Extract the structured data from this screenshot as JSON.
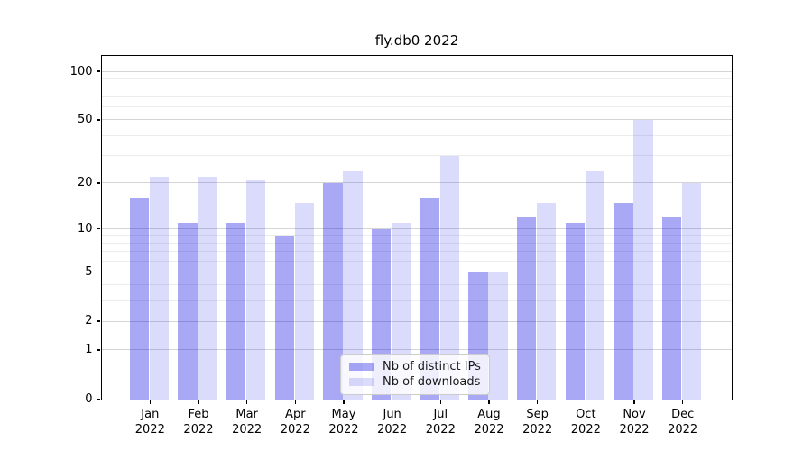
{
  "title": "fly.db0 2022",
  "chart_data": {
    "type": "bar",
    "title": "fly.db0 2022",
    "categories": [
      "Jan",
      "Feb",
      "Mar",
      "Apr",
      "May",
      "Jun",
      "Jul",
      "Aug",
      "Sep",
      "Oct",
      "Nov",
      "Dec"
    ],
    "year_label": "2022",
    "series": [
      {
        "name": "Nb of distinct IPs",
        "values": [
          16,
          11,
          11,
          9,
          20,
          10,
          16,
          5,
          12,
          11,
          15,
          12
        ],
        "color": "rgba(0,0,224,0.34)"
      },
      {
        "name": "Nb of downloads",
        "values": [
          22,
          22,
          21,
          15,
          24,
          11,
          30,
          5,
          15,
          24,
          50,
          20
        ],
        "color": "rgba(0,0,224,0.14)"
      }
    ],
    "yscale": "log1p",
    "ylim": [
      0,
      124
    ],
    "yticks": [
      0,
      1,
      2,
      5,
      10,
      20,
      50,
      100
    ],
    "minor_gridlines": [
      3,
      4,
      6,
      7,
      8,
      9,
      30,
      40,
      60,
      70,
      80,
      90
    ],
    "grid": true,
    "legend_position": "lower center"
  },
  "legend": {
    "items": [
      {
        "label": "Nb of distinct IPs"
      },
      {
        "label": "Nb of downloads"
      }
    ]
  },
  "colors": {
    "bar_distinct_ips": "rgba(0,0,224,0.34)",
    "bar_downloads": "rgba(0,0,224,0.14)",
    "grid_major": "#d5d5d5",
    "grid_minor": "#ededed",
    "spine": "#000000",
    "legend_border": "#cccccc",
    "legend_background": "rgba(255,255,255,0.8)"
  }
}
